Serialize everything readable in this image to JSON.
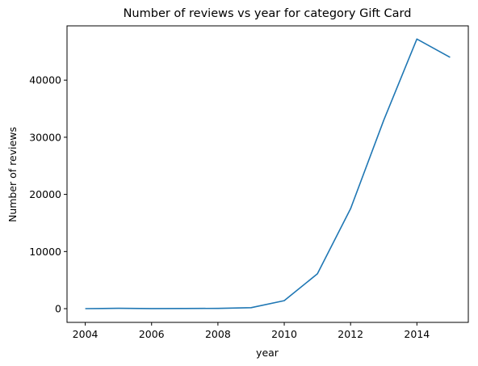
{
  "chart_data": {
    "type": "line",
    "title": "Number of reviews vs year for category Gift Card",
    "xlabel": "year",
    "ylabel": "Number of reviews",
    "xlim": [
      2003.45,
      2015.55
    ],
    "ylim": [
      -2400,
      49500
    ],
    "xticks": [
      2004,
      2006,
      2008,
      2010,
      2012,
      2014
    ],
    "yticks": [
      0,
      10000,
      20000,
      30000,
      40000
    ],
    "grid": false,
    "legend": "none",
    "series": [
      {
        "color": "#1f77b4",
        "x": [
          2004,
          2005,
          2006,
          2007,
          2008,
          2009,
          2010,
          2011,
          2012,
          2013,
          2014,
          2015
        ],
        "y": [
          10,
          60,
          20,
          30,
          40,
          170,
          1400,
          6100,
          17500,
          33000,
          47200,
          44000
        ]
      }
    ]
  }
}
